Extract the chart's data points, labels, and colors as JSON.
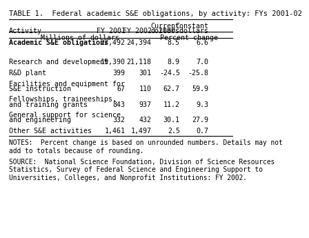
{
  "title": "TABLE 1.  Federal academic S&E obligations, by activity: FYs 2001-02",
  "col_headers_line1": [
    "",
    "FY 2001",
    "FY 2002",
    "Current\ndollars",
    "Constant\n2000 dollars"
  ],
  "col_headers_line2": [
    "Activity",
    "FY 2001",
    "FY 2002",
    "Current\ndollars",
    "Constant\n2000 dollars"
  ],
  "subheader_left": "Millions of dollars",
  "subheader_right": "Percent change",
  "rows": [
    {
      "label": "Academic S&E obligations",
      "indent": 0,
      "bold": true,
      "fy2001": "22,492",
      "fy2002": "24,394",
      "curr": "8.5",
      "const": "6.6"
    },
    {
      "label": "",
      "indent": 0,
      "bold": false,
      "fy2001": "",
      "fy2002": "",
      "curr": "",
      "const": ""
    },
    {
      "label": "Research and development",
      "indent": 1,
      "bold": false,
      "fy2001": "19,390",
      "fy2002": "21,118",
      "curr": "8.9",
      "const": "7.0"
    },
    {
      "label": "R&D plant",
      "indent": 1,
      "bold": false,
      "fy2001": "399",
      "fy2002": "301",
      "curr": "-24.5",
      "const": "-25.8"
    },
    {
      "label": "Facilities and equipment for\n  S&E instruction",
      "indent": 1,
      "bold": false,
      "fy2001": "67",
      "fy2002": "110",
      "curr": "62.7",
      "const": "59.9"
    },
    {
      "label": "Fellowships, traineeships,\n  and training grants",
      "indent": 1,
      "bold": false,
      "fy2001": "843",
      "fy2002": "937",
      "curr": "11.2",
      "const": "9.3"
    },
    {
      "label": "General support for science\n  and engineering",
      "indent": 1,
      "bold": false,
      "fy2001": "332",
      "fy2002": "432",
      "curr": "30.1",
      "const": "27.9"
    },
    {
      "label": "Other S&E activities",
      "indent": 1,
      "bold": false,
      "fy2001": "1,461",
      "fy2002": "1,497",
      "curr": "2.5",
      "const": "0.7"
    }
  ],
  "notes": "NOTES:  Percent change is based on unrounded numbers. Details may not\nadd to totals because of rounding.",
  "source": "SOURCE:  National Science Foundation, Division of Science Resources\nStatistics, Survey of Federal Science and Engineering Support to\nUniversities, Colleges, and Nonprofit Institutions: FY 2002.",
  "bg_color": "#ffffff",
  "font_size": 7.2,
  "title_font_size": 7.5
}
